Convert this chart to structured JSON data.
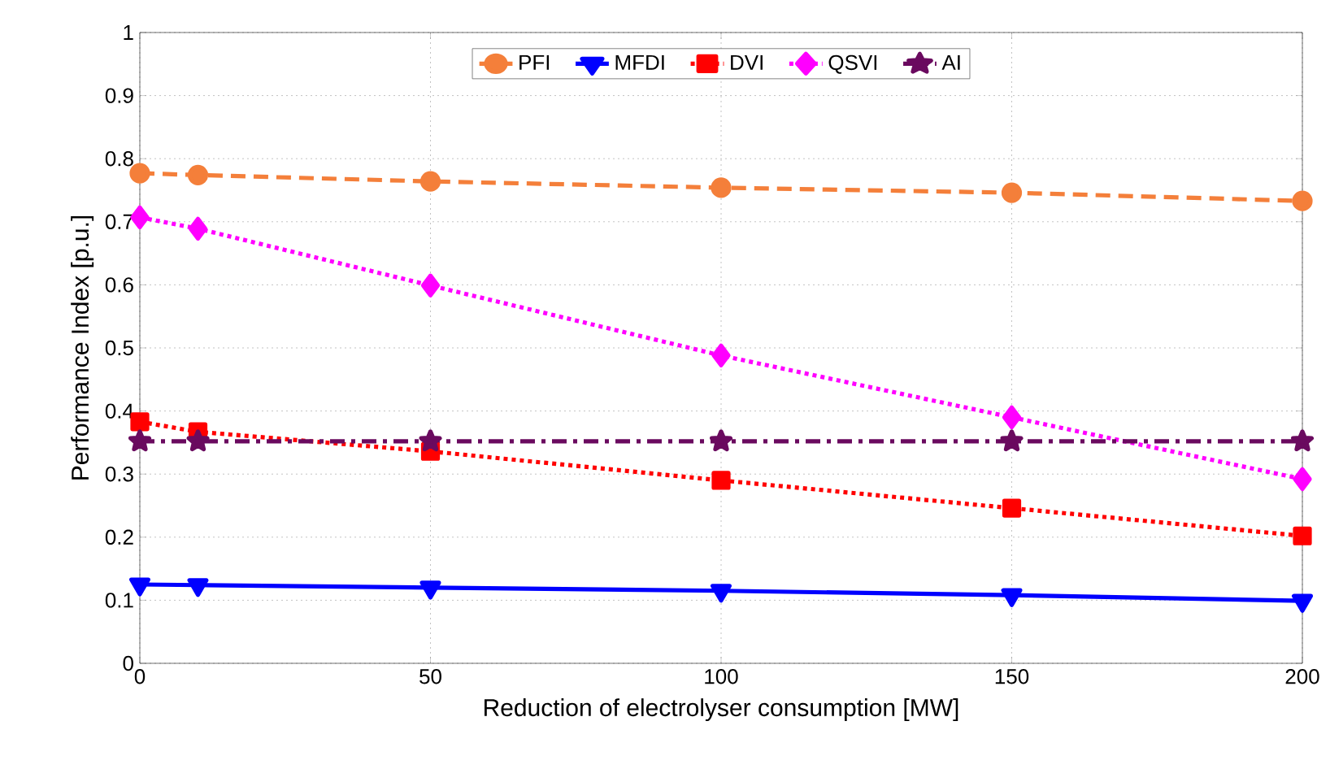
{
  "chart_data": {
    "type": "line",
    "xlabel": "Reduction of electrolyser consumption [MW]",
    "ylabel": "Performance Index [p.u.]",
    "x": [
      0,
      10,
      50,
      100,
      150,
      200
    ],
    "series": [
      {
        "name": "PFI",
        "color": "#f47f3a",
        "marker": "circle",
        "line_style": "dashed",
        "values": [
          0.777,
          0.774,
          0.764,
          0.754,
          0.746,
          0.733
        ]
      },
      {
        "name": "MFDI",
        "color": "#0000ff",
        "marker": "triangle",
        "line_style": "solid",
        "values": [
          0.125,
          0.124,
          0.12,
          0.115,
          0.108,
          0.099
        ]
      },
      {
        "name": "DVI",
        "color": "#ff0000",
        "marker": "square",
        "line_style": "dotted",
        "values": [
          0.383,
          0.367,
          0.336,
          0.29,
          0.246,
          0.202
        ]
      },
      {
        "name": "QSVI",
        "color": "#ff00ff",
        "marker": "diamond",
        "line_style": "dotted",
        "values": [
          0.707,
          0.689,
          0.599,
          0.488,
          0.39,
          0.292
        ]
      },
      {
        "name": "AI",
        "color": "#6a0a5f",
        "marker": "star",
        "line_style": "dashdot",
        "values": [
          0.352,
          0.352,
          0.352,
          0.352,
          0.352,
          0.352
        ]
      }
    ],
    "xlim": [
      0,
      200
    ],
    "xticks": [
      0,
      50,
      100,
      150,
      200
    ],
    "ylim": [
      0,
      1
    ],
    "yticks": [
      0,
      0.1,
      0.2,
      0.3,
      0.4,
      0.5,
      0.6,
      0.7,
      0.8,
      0.9,
      1
    ],
    "grid": true,
    "legend": "top"
  }
}
